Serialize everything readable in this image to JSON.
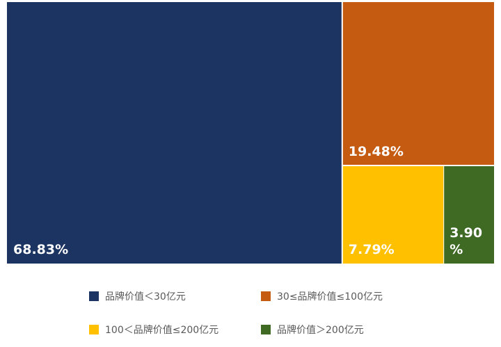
{
  "chart_data": {
    "type": "treemap",
    "title": "",
    "series": [
      {
        "name": "品牌价值＜30亿元",
        "value": 68.83,
        "label": "68.83%",
        "color": "#1b3461"
      },
      {
        "name": "30≤品牌价值≤100亿元",
        "value": 19.48,
        "label": "19.48%",
        "color": "#c55a11"
      },
      {
        "name": "100＜品牌价值≤200亿元",
        "value": 7.79,
        "label": "7.79%",
        "color": "#ffc000"
      },
      {
        "name": "品牌价值＞200亿元",
        "value": 3.9,
        "label_lines": [
          "3.90",
          "%"
        ],
        "color": "#3f6a24"
      }
    ],
    "legend_position": "bottom"
  }
}
